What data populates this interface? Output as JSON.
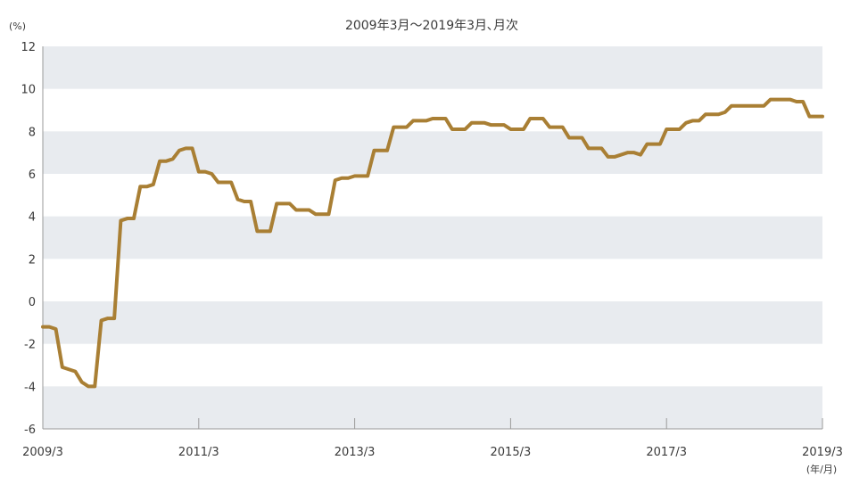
{
  "chart_data": {
    "type": "line",
    "title": "2009年3月～2019年3月､月次",
    "ylabel": "(%)",
    "xlabel": "(年/月)",
    "ylim": [
      -6,
      12
    ],
    "yticks": [
      -6,
      -4,
      -2,
      0,
      2,
      4,
      6,
      8,
      10,
      12
    ],
    "xticks": [
      "2009/3",
      "2011/3",
      "2013/3",
      "2015/3",
      "2017/3",
      "2019/3"
    ],
    "grid": "alternating horizontal bands",
    "series_color": "#a97f34",
    "band_color": "#e8ebef",
    "series": [
      {
        "x": [
          "2009/3",
          "2009/4",
          "2009/5",
          "2009/6",
          "2009/7",
          "2009/8",
          "2009/9",
          "2009/10",
          "2009/11",
          "2009/12",
          "2010/1",
          "2010/2",
          "2010/3",
          "2010/4",
          "2010/5",
          "2010/6",
          "2010/7",
          "2010/8",
          "2010/9",
          "2010/10",
          "2010/11",
          "2010/12",
          "2011/1",
          "2011/2",
          "2011/3",
          "2011/4",
          "2011/5",
          "2011/6",
          "2011/7",
          "2011/8",
          "2011/9",
          "2011/10",
          "2011/11",
          "2011/12",
          "2012/1",
          "2012/2",
          "2012/3",
          "2012/4",
          "2012/5",
          "2012/6",
          "2012/7",
          "2012/8",
          "2012/9",
          "2012/10",
          "2012/11",
          "2012/12",
          "2013/1",
          "2013/2",
          "2013/3",
          "2013/4",
          "2013/5",
          "2013/6",
          "2013/7",
          "2013/8",
          "2013/9",
          "2013/10",
          "2013/11",
          "2013/12",
          "2014/1",
          "2014/2",
          "2014/3",
          "2014/4",
          "2014/5",
          "2014/6",
          "2014/7",
          "2014/8",
          "2014/9",
          "2014/10",
          "2014/11",
          "2014/12",
          "2015/1",
          "2015/2",
          "2015/3",
          "2015/4",
          "2015/5",
          "2015/6",
          "2015/7",
          "2015/8",
          "2015/9",
          "2015/10",
          "2015/11",
          "2015/12",
          "2016/1",
          "2016/2",
          "2016/3",
          "2016/4",
          "2016/5",
          "2016/6",
          "2016/7",
          "2016/8",
          "2016/9",
          "2016/10",
          "2016/11",
          "2016/12",
          "2017/1",
          "2017/2",
          "2017/3",
          "2017/4",
          "2017/5",
          "2017/6",
          "2017/7",
          "2017/8",
          "2017/9",
          "2017/10",
          "2017/11",
          "2017/12",
          "2018/1",
          "2018/2",
          "2018/3",
          "2018/4",
          "2018/5",
          "2018/6",
          "2018/7",
          "2018/8",
          "2018/9",
          "2018/10",
          "2018/11",
          "2018/12",
          "2019/1",
          "2019/2",
          "2019/3"
        ],
        "values": [
          -1.2,
          -1.2,
          -1.3,
          -3.1,
          -3.2,
          -3.3,
          -3.8,
          -4.0,
          -4.0,
          -0.9,
          -0.8,
          -0.8,
          3.8,
          3.9,
          3.9,
          5.4,
          5.4,
          5.5,
          6.6,
          6.6,
          6.7,
          7.1,
          7.2,
          7.2,
          6.1,
          6.1,
          6.0,
          5.6,
          5.6,
          5.6,
          4.8,
          4.7,
          4.7,
          3.3,
          3.3,
          3.3,
          4.6,
          4.6,
          4.6,
          4.3,
          4.3,
          4.3,
          4.1,
          4.1,
          4.1,
          5.7,
          5.8,
          5.8,
          5.9,
          5.9,
          5.9,
          7.1,
          7.1,
          7.1,
          8.2,
          8.2,
          8.2,
          8.5,
          8.5,
          8.5,
          8.6,
          8.6,
          8.6,
          8.1,
          8.1,
          8.1,
          8.4,
          8.4,
          8.4,
          8.3,
          8.3,
          8.3,
          8.1,
          8.1,
          8.1,
          8.6,
          8.6,
          8.6,
          8.2,
          8.2,
          8.2,
          7.7,
          7.7,
          7.7,
          7.2,
          7.2,
          7.2,
          6.8,
          6.8,
          6.9,
          7.0,
          7.0,
          6.9,
          7.4,
          7.4,
          7.4,
          8.1,
          8.1,
          8.1,
          8.4,
          8.5,
          8.5,
          8.8,
          8.8,
          8.8,
          8.9,
          9.2,
          9.2,
          9.2,
          9.2,
          9.2,
          9.2,
          9.5,
          9.5,
          9.5,
          9.5,
          9.4,
          9.4,
          8.7,
          8.7,
          8.7
        ]
      }
    ]
  }
}
